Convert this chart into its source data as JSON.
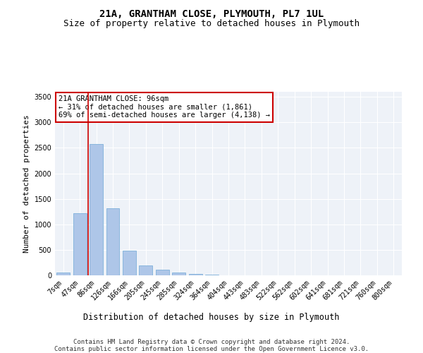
{
  "title": "21A, GRANTHAM CLOSE, PLYMOUTH, PL7 1UL",
  "subtitle": "Size of property relative to detached houses in Plymouth",
  "xlabel": "Distribution of detached houses by size in Plymouth",
  "ylabel": "Number of detached properties",
  "footer_line1": "Contains HM Land Registry data © Crown copyright and database right 2024.",
  "footer_line2": "Contains public sector information licensed under the Open Government Licence v3.0.",
  "annotation_line1": "21A GRANTHAM CLOSE: 96sqm",
  "annotation_line2": "← 31% of detached houses are smaller (1,861)",
  "annotation_line3": "69% of semi-detached houses are larger (4,138) →",
  "categories": [
    "7sqm",
    "47sqm",
    "86sqm",
    "126sqm",
    "166sqm",
    "205sqm",
    "245sqm",
    "285sqm",
    "324sqm",
    "364sqm",
    "404sqm",
    "443sqm",
    "483sqm",
    "522sqm",
    "562sqm",
    "602sqm",
    "641sqm",
    "681sqm",
    "721sqm",
    "760sqm",
    "800sqm"
  ],
  "values": [
    50,
    1220,
    2580,
    1310,
    480,
    195,
    110,
    50,
    30,
    10,
    0,
    0,
    0,
    0,
    0,
    0,
    0,
    0,
    0,
    0,
    0
  ],
  "bar_color": "#aec6e8",
  "bar_edge_color": "#6fa8d6",
  "red_line_col": 2,
  "red_line_color": "#cc0000",
  "ylim": [
    0,
    3600
  ],
  "yticks": [
    0,
    500,
    1000,
    1500,
    2000,
    2500,
    3000,
    3500
  ],
  "background_color": "#ffffff",
  "plot_bg_color": "#eef2f8",
  "grid_color": "#ffffff",
  "annotation_box_color": "#ffffff",
  "annotation_box_edge_color": "#cc0000",
  "title_fontsize": 10,
  "subtitle_fontsize": 9,
  "xlabel_fontsize": 8.5,
  "ylabel_fontsize": 8,
  "tick_fontsize": 7,
  "annotation_fontsize": 7.5,
  "footer_fontsize": 6.5
}
